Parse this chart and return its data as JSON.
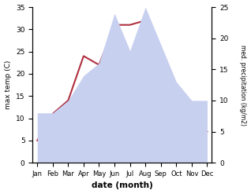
{
  "months": [
    "Jan",
    "Feb",
    "Mar",
    "Apr",
    "May",
    "Jun",
    "Jul",
    "Aug",
    "Sep",
    "Oct",
    "Nov",
    "Dec"
  ],
  "temp": [
    5,
    11,
    14,
    24,
    22,
    31,
    31,
    32,
    25,
    17,
    10,
    7
  ],
  "precip": [
    8,
    8,
    10,
    14,
    16,
    24,
    18,
    25,
    19,
    13,
    10,
    10
  ],
  "temp_color": "#b03040",
  "precip_fill_color": "#c8d0f0",
  "xlabel": "date (month)",
  "ylabel_left": "max temp (C)",
  "ylabel_right": "med. precipitation (kg/m2)",
  "ylim_left": [
    0,
    35
  ],
  "ylim_right": [
    0,
    25
  ],
  "yticks_left": [
    0,
    5,
    10,
    15,
    20,
    25,
    30,
    35
  ],
  "yticks_right": [
    0,
    5,
    10,
    15,
    20,
    25
  ],
  "background_color": "#ffffff"
}
